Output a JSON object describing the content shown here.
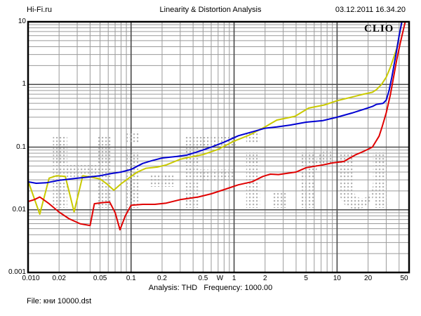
{
  "header": {
    "site": "Hi-Fi.ru",
    "title": "Linearity & Distortion Analysis",
    "datetime": "03.12.2011 16.34.20"
  },
  "branding": {
    "logo": "CLIO"
  },
  "watermark": {
    "text": "Hi-Fi.ru",
    "dot_color": "#b4b4b4"
  },
  "footer": {
    "analysis": "Analysis: THD   Frequency: 1000.00",
    "file": "File: кни 10000.dst"
  },
  "colors": {
    "background": "#ffffff",
    "text": "#000000",
    "border": "#000000",
    "grid_minor": "#9a9a9a",
    "grid_major": "#4a4a4a"
  },
  "chart_data": {
    "type": "line",
    "title": "Linearity & Distortion Analysis",
    "grid": true,
    "legend": "none",
    "x_axis": {
      "unit": "W",
      "scale": "log",
      "min": 0.01,
      "max": 50,
      "ticks": [
        {
          "v": 0.01,
          "label": "0.010"
        },
        {
          "v": 0.02,
          "label": "0.02"
        },
        {
          "v": 0.05,
          "label": "0.05"
        },
        {
          "v": 0.1,
          "label": "0.1"
        },
        {
          "v": 0.2,
          "label": "0.2"
        },
        {
          "v": 0.5,
          "label": "0.5"
        },
        {
          "v": 1,
          "label": "1"
        },
        {
          "v": 2,
          "label": "2"
        },
        {
          "v": 5,
          "label": "5"
        },
        {
          "v": 10,
          "label": "10"
        },
        {
          "v": 20,
          "label": "20"
        },
        {
          "v": 50,
          "label": "50"
        }
      ]
    },
    "y_axis": {
      "unit": "THD",
      "scale": "log",
      "min": 0.001,
      "max": 10,
      "ticks": [
        {
          "v": 10,
          "label": "10"
        },
        {
          "v": 1,
          "label": "1"
        },
        {
          "v": 0.1,
          "label": "0.1"
        },
        {
          "v": 0.01,
          "label": "0.01"
        },
        {
          "v": 0.001,
          "label": "0.001"
        }
      ]
    },
    "series": [
      {
        "name": "thd-yellow",
        "color": "#c9c900",
        "points": [
          [
            0.01,
            0.029
          ],
          [
            0.013,
            0.0085
          ],
          [
            0.016,
            0.032
          ],
          [
            0.019,
            0.035
          ],
          [
            0.023,
            0.034
          ],
          [
            0.028,
            0.0093
          ],
          [
            0.034,
            0.035
          ],
          [
            0.042,
            0.033
          ],
          [
            0.05,
            0.031
          ],
          [
            0.058,
            0.026
          ],
          [
            0.068,
            0.0205
          ],
          [
            0.08,
            0.026
          ],
          [
            0.1,
            0.034
          ],
          [
            0.115,
            0.04
          ],
          [
            0.14,
            0.046
          ],
          [
            0.18,
            0.048
          ],
          [
            0.22,
            0.052
          ],
          [
            0.3,
            0.064
          ],
          [
            0.4,
            0.071
          ],
          [
            0.5,
            0.076
          ],
          [
            0.7,
            0.092
          ],
          [
            1.0,
            0.125
          ],
          [
            1.4,
            0.155
          ],
          [
            2.0,
            0.21
          ],
          [
            2.6,
            0.27
          ],
          [
            3.9,
            0.31
          ],
          [
            5.3,
            0.42
          ],
          [
            7.5,
            0.47
          ],
          [
            10,
            0.55
          ],
          [
            14,
            0.63
          ],
          [
            18,
            0.7
          ],
          [
            22,
            0.75
          ],
          [
            24,
            0.82
          ],
          [
            27,
            1.0
          ],
          [
            30,
            1.3
          ],
          [
            33,
            1.9
          ],
          [
            36,
            2.9
          ],
          [
            38,
            3.8
          ],
          [
            40,
            5.8
          ],
          [
            42,
            9.0
          ],
          [
            43,
            11
          ]
        ]
      },
      {
        "name": "thd-blue",
        "color": "#0000d2",
        "points": [
          [
            0.01,
            0.028
          ],
          [
            0.012,
            0.0265
          ],
          [
            0.015,
            0.027
          ],
          [
            0.02,
            0.0295
          ],
          [
            0.03,
            0.032
          ],
          [
            0.04,
            0.0335
          ],
          [
            0.05,
            0.035
          ],
          [
            0.065,
            0.038
          ],
          [
            0.08,
            0.04
          ],
          [
            0.1,
            0.044
          ],
          [
            0.13,
            0.055
          ],
          [
            0.16,
            0.061
          ],
          [
            0.2,
            0.067
          ],
          [
            0.28,
            0.071
          ],
          [
            0.35,
            0.075
          ],
          [
            0.45,
            0.085
          ],
          [
            0.6,
            0.1
          ],
          [
            0.8,
            0.12
          ],
          [
            1.1,
            0.152
          ],
          [
            1.5,
            0.175
          ],
          [
            2.0,
            0.2
          ],
          [
            2.6,
            0.21
          ],
          [
            3.5,
            0.225
          ],
          [
            5.0,
            0.25
          ],
          [
            7.3,
            0.265
          ],
          [
            10,
            0.3
          ],
          [
            14,
            0.35
          ],
          [
            18,
            0.4
          ],
          [
            22,
            0.445
          ],
          [
            24,
            0.48
          ],
          [
            28,
            0.5
          ],
          [
            30,
            0.56
          ],
          [
            32,
            0.8
          ],
          [
            34,
            1.3
          ],
          [
            36,
            2.2
          ],
          [
            38,
            3.6
          ],
          [
            40,
            6.0
          ],
          [
            42,
            9.0
          ],
          [
            43,
            11
          ]
        ]
      },
      {
        "name": "thd-red",
        "color": "#e00000",
        "points": [
          [
            0.01,
            0.0135
          ],
          [
            0.0115,
            0.0145
          ],
          [
            0.013,
            0.016
          ],
          [
            0.016,
            0.0125
          ],
          [
            0.02,
            0.0092
          ],
          [
            0.025,
            0.0072
          ],
          [
            0.032,
            0.006
          ],
          [
            0.04,
            0.0056
          ],
          [
            0.044,
            0.0125
          ],
          [
            0.052,
            0.013
          ],
          [
            0.062,
            0.0133
          ],
          [
            0.07,
            0.009
          ],
          [
            0.078,
            0.0048
          ],
          [
            0.088,
            0.008
          ],
          [
            0.1,
            0.0118
          ],
          [
            0.13,
            0.0122
          ],
          [
            0.17,
            0.0122
          ],
          [
            0.22,
            0.0128
          ],
          [
            0.3,
            0.0145
          ],
          [
            0.45,
            0.016
          ],
          [
            0.6,
            0.018
          ],
          [
            0.8,
            0.021
          ],
          [
            1.1,
            0.025
          ],
          [
            1.5,
            0.028
          ],
          [
            1.9,
            0.034
          ],
          [
            2.25,
            0.037
          ],
          [
            2.7,
            0.0365
          ],
          [
            3.2,
            0.038
          ],
          [
            4.0,
            0.04
          ],
          [
            5.0,
            0.047
          ],
          [
            7.3,
            0.052
          ],
          [
            9.0,
            0.056
          ],
          [
            11.6,
            0.059
          ],
          [
            15,
            0.075
          ],
          [
            18.5,
            0.087
          ],
          [
            22,
            0.1
          ],
          [
            25.6,
            0.15
          ],
          [
            27.6,
            0.22
          ],
          [
            30,
            0.35
          ],
          [
            33,
            0.7
          ],
          [
            35,
            1.2
          ],
          [
            38,
            2.5
          ],
          [
            41,
            4.5
          ],
          [
            44,
            7.5
          ],
          [
            46.5,
            11
          ]
        ]
      }
    ]
  }
}
